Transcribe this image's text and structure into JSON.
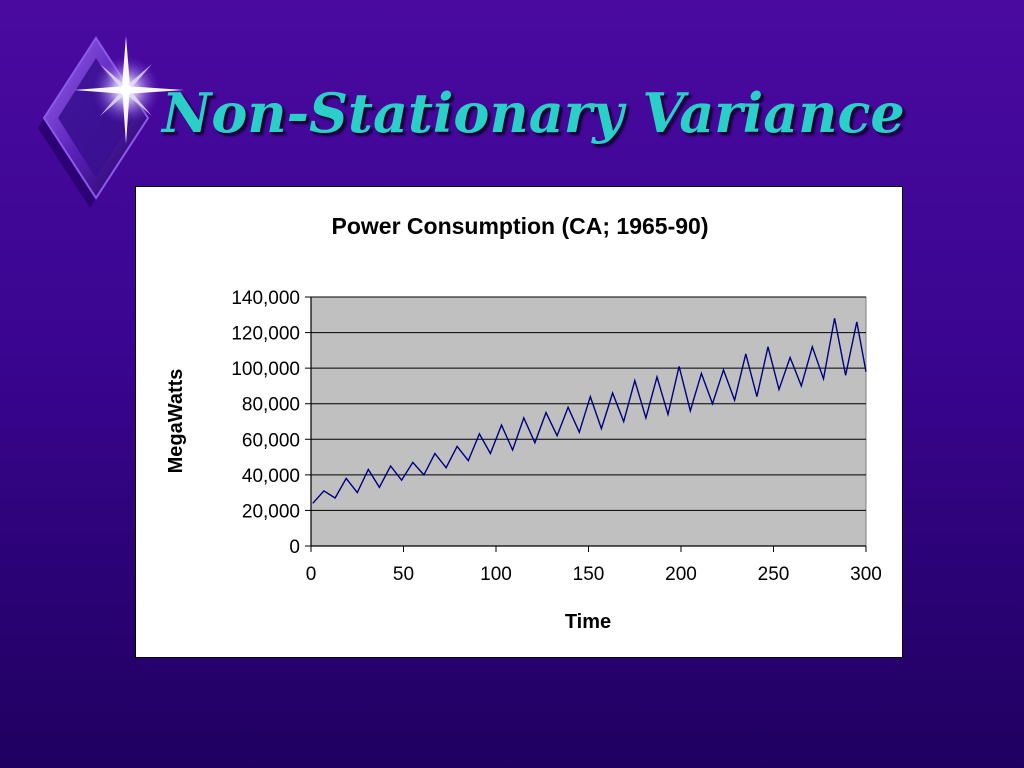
{
  "slide": {
    "title": "Non-Stationary Variance",
    "title_color": "#2ad0c8",
    "background_color": "#4a0aa0",
    "logo_icon": "sparkle-diamond-icon"
  },
  "chart_data": {
    "type": "line",
    "title": "Power Consumption (CA; 1965-90)",
    "xlabel": "Time",
    "ylabel": "MegaWatts",
    "xlim": [
      0,
      300
    ],
    "ylim": [
      0,
      140000
    ],
    "x_ticks": [
      0,
      50,
      100,
      150,
      200,
      250,
      300
    ],
    "y_ticks": [
      0,
      20000,
      40000,
      60000,
      80000,
      100000,
      120000,
      140000
    ],
    "x_tick_labels": [
      "0",
      "50",
      "100",
      "150",
      "200",
      "250",
      "300"
    ],
    "y_tick_labels": [
      "0",
      "20,000",
      "40,000",
      "60,000",
      "80,000",
      "100,000",
      "120,000",
      "140,000"
    ],
    "grid": true,
    "plot_background": "#c0c0c0",
    "series": [
      {
        "color": "#000080",
        "x": [
          1,
          7,
          13,
          19,
          25,
          31,
          37,
          43,
          49,
          55,
          61,
          67,
          73,
          79,
          85,
          91,
          97,
          103,
          109,
          115,
          121,
          127,
          133,
          139,
          145,
          151,
          157,
          163,
          169,
          175,
          181,
          187,
          193,
          199,
          205,
          211,
          217,
          223,
          229,
          235,
          241,
          247,
          253,
          259,
          265,
          271,
          277,
          283,
          289,
          295,
          300
        ],
        "values": [
          24000,
          31000,
          27000,
          38000,
          30000,
          43000,
          33000,
          45000,
          37000,
          47000,
          40000,
          52000,
          44000,
          56000,
          48000,
          63000,
          52000,
          68000,
          54000,
          72000,
          58000,
          75000,
          62000,
          78000,
          64000,
          84000,
          66000,
          86000,
          70000,
          93000,
          72000,
          95000,
          74000,
          101000,
          76000,
          97000,
          80000,
          99000,
          82000,
          108000,
          84000,
          112000,
          88000,
          106000,
          90000,
          112000,
          94000,
          128000,
          96000,
          126000,
          98000
        ]
      }
    ]
  }
}
